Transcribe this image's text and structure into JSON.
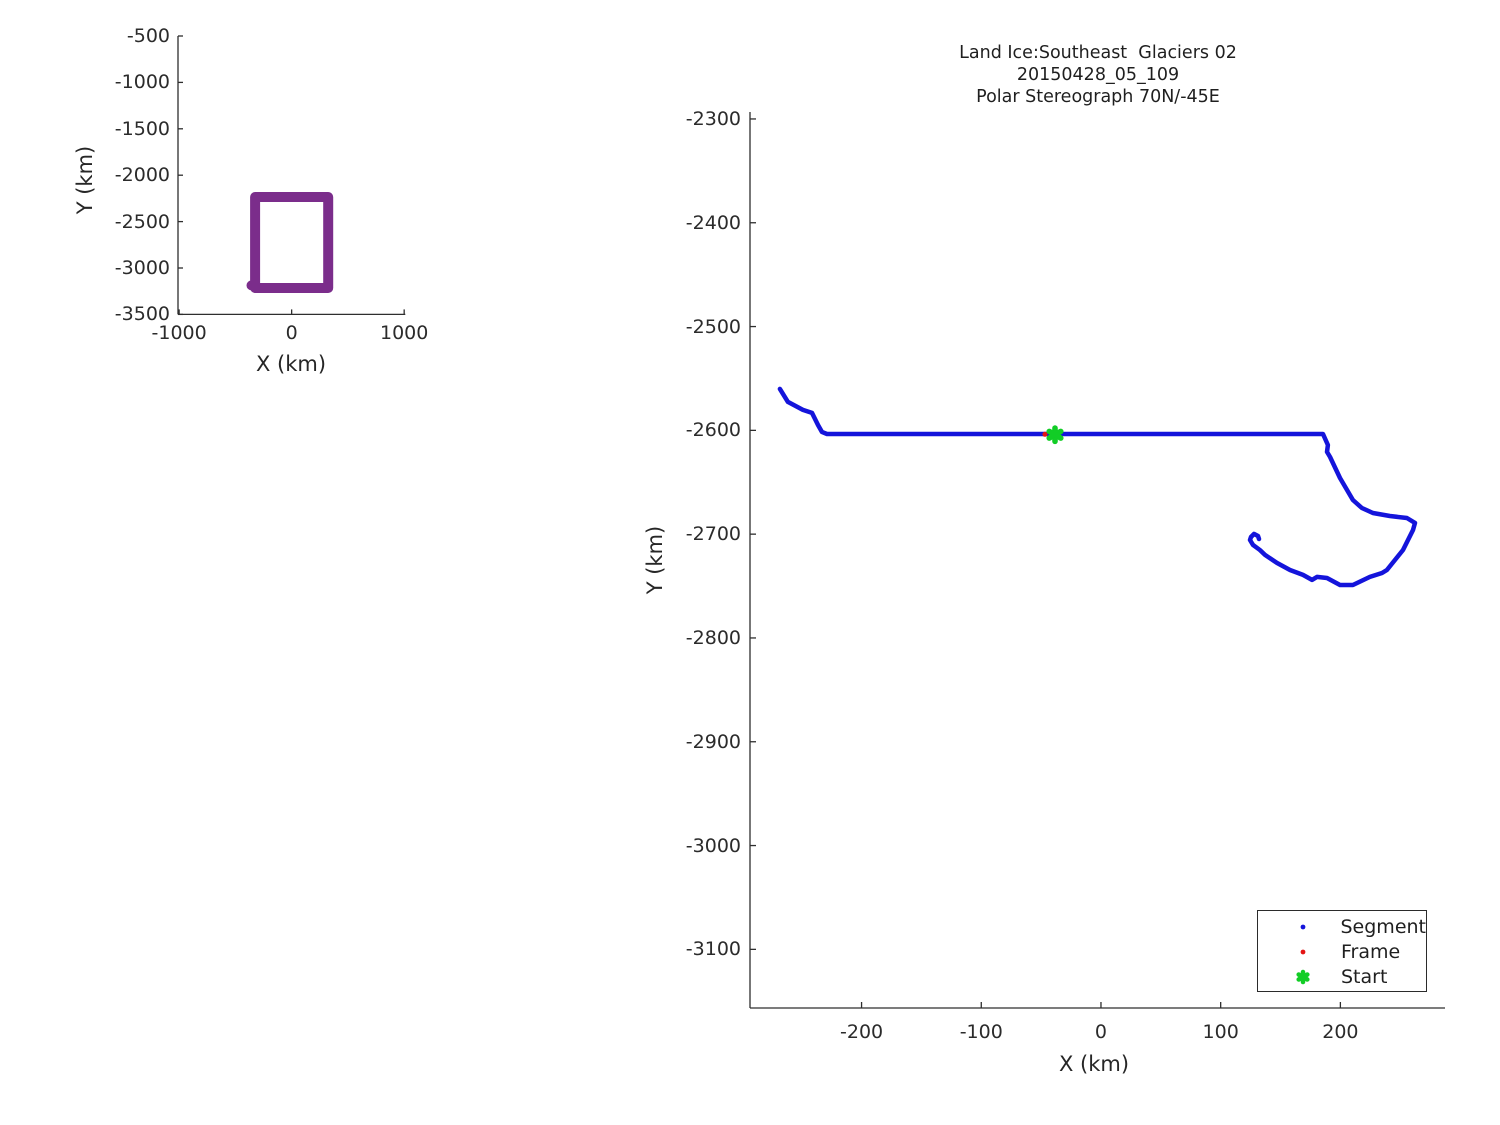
{
  "colors": {
    "background": "#ffffff",
    "axis": "#2e2e2e",
    "text": "#262626",
    "segment_blue": "#1414db",
    "frame_red": "#e41414",
    "start_green": "#12cd26",
    "region_purple": "#7b2d8b"
  },
  "legend_title": "",
  "chart_data": [
    {
      "id": "overview",
      "type": "line",
      "title": "",
      "xlabel": "X (km)",
      "ylabel": "Y (km)",
      "xlim": [
        -1010,
        1010
      ],
      "ylim": [
        -500,
        -3500
      ],
      "x_ticks": [
        -1000,
        0,
        1000
      ],
      "y_ticks": [
        -500,
        -1000,
        -1500,
        -2000,
        -2500,
        -3000,
        -3500
      ],
      "grid": false,
      "series": [
        {
          "name": "survey-region-outline",
          "color": "#7b2d8b",
          "line_width": 10,
          "points": [
            [
              -357,
              -3187
            ],
            [
              -320,
              -3187
            ],
            [
              -325,
              -3215
            ],
            [
              325,
              -3215
            ],
            [
              325,
              -2235
            ],
            [
              -325,
              -2235
            ],
            [
              -325,
              -3215
            ]
          ]
        }
      ]
    },
    {
      "id": "main",
      "type": "line",
      "title_lines": [
        "Land Ice:Southeast  Glaciers 02",
        "20150428_05_109",
        "Polar Stereograph 70N/-45E"
      ],
      "xlabel": "X (km)",
      "ylabel": "Y (km)",
      "xlim": [
        -293.2,
        287.4
      ],
      "ylim": [
        -2293.3,
        -3156.5
      ],
      "x_ticks": [
        -200,
        -100,
        0,
        100,
        200
      ],
      "y_ticks": [
        -2300,
        -2400,
        -2500,
        -2600,
        -2700,
        -2800,
        -2900,
        -3000,
        -3100
      ],
      "grid": false,
      "legend": {
        "position": "lower right",
        "items": [
          {
            "label": "Segment",
            "marker": "dot",
            "color": "#1414db"
          },
          {
            "label": "Frame",
            "marker": "dot",
            "color": "#e41414"
          },
          {
            "label": "Start",
            "marker": "asterisk",
            "color": "#12cd26"
          }
        ]
      },
      "series": [
        {
          "name": "segment-track",
          "color": "#1414db",
          "line_width": 4.5,
          "points": [
            [
              -268.2,
              -2560.1
            ],
            [
              -261.5,
              -2572.6
            ],
            [
              -249,
              -2580.3
            ],
            [
              -241.4,
              -2583.2
            ],
            [
              -236.4,
              -2594.8
            ],
            [
              -233.1,
              -2601.5
            ],
            [
              -228.9,
              -2603.5
            ],
            [
              185.5,
              -2603.5
            ],
            [
              189.6,
              -2614.1
            ],
            [
              188.8,
              -2620.8
            ],
            [
              191.3,
              -2625.6
            ],
            [
              199.7,
              -2645.9
            ],
            [
              210.5,
              -2667.1
            ],
            [
              218,
              -2674.8
            ],
            [
              227.2,
              -2679.6
            ],
            [
              241.4,
              -2682.5
            ],
            [
              255.6,
              -2684.4
            ],
            [
              262.3,
              -2689.2
            ],
            [
              260.7,
              -2696
            ],
            [
              252.3,
              -2715.3
            ],
            [
              238.9,
              -2734.5
            ],
            [
              234.8,
              -2737.4
            ],
            [
              224.7,
              -2741.2
            ],
            [
              210.5,
              -2749
            ],
            [
              199.7,
              -2749
            ],
            [
              188.8,
              -2742.2
            ],
            [
              180.5,
              -2741.2
            ],
            [
              176.3,
              -2744.1
            ],
            [
              168.8,
              -2739.3
            ],
            [
              157.9,
              -2734.5
            ],
            [
              147,
              -2727.7
            ],
            [
              137,
              -2720
            ],
            [
              132.8,
              -2715.3
            ],
            [
              127,
              -2710.4
            ],
            [
              124.5,
              -2705.6
            ],
            [
              125.3,
              -2702.7
            ],
            [
              127.8,
              -2699.8
            ],
            [
              131.2,
              -2701.8
            ],
            [
              132,
              -2704.7
            ]
          ]
        }
      ],
      "markers": [
        {
          "name": "frame-point",
          "shape": "dot",
          "color": "#e41414",
          "x": -46.8,
          "y": -2603.8,
          "size": 5
        },
        {
          "name": "start-point",
          "shape": "asterisk",
          "color": "#12cd26",
          "x": -38.4,
          "y": -2604.2,
          "size": 18
        }
      ]
    }
  ]
}
